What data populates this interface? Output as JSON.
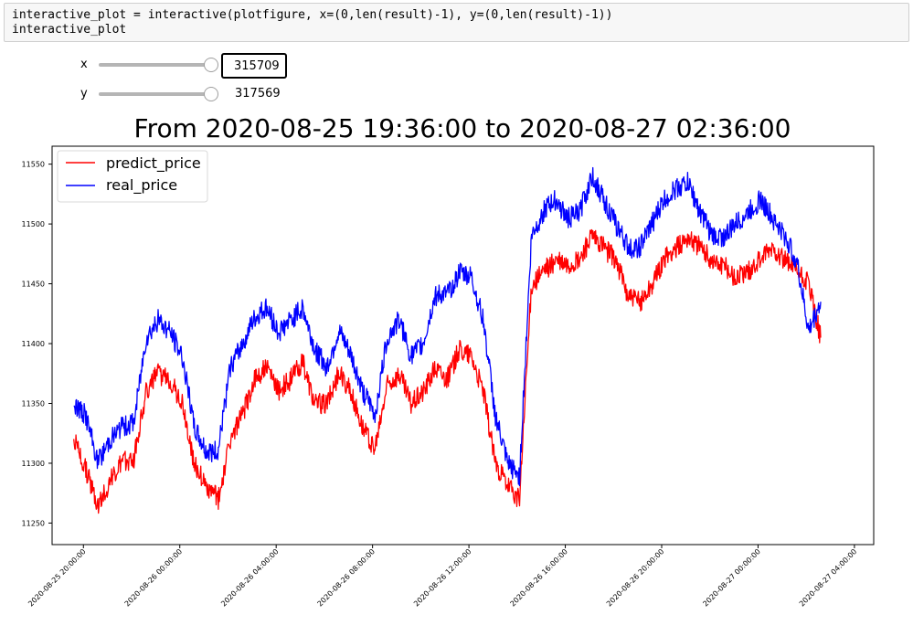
{
  "code_cell": {
    "line1": "interactive_plot = interactive(plotfigure, x=(0,len(result)-1), y=(0,len(result)-1))",
    "line2": "interactive_plot"
  },
  "widgets": {
    "x": {
      "label": "x",
      "value": "315709",
      "position_fraction": 1.0
    },
    "y": {
      "label": "y",
      "value": "317569",
      "position_fraction": 1.0
    }
  },
  "chart_data": {
    "type": "line",
    "title": "From 2020-08-25 19:36:00 to 2020-08-27 02:36:00",
    "xlabel": "",
    "ylabel": "",
    "x_range": [
      "2020-08-25 19:36:00",
      "2020-08-27 02:36:00"
    ],
    "ylim": [
      11232,
      11565
    ],
    "yticks": [
      11250,
      11300,
      11350,
      11400,
      11450,
      11500,
      11550
    ],
    "xticks": [
      "2020-08-25 20:00:00",
      "2020-08-26 00:00:00",
      "2020-08-26 04:00:00",
      "2020-08-26 08:00:00",
      "2020-08-26 12:00:00",
      "2020-08-26 16:00:00",
      "2020-08-26 20:00:00",
      "2020-08-27 00:00:00",
      "2020-08-27 04:00:00"
    ],
    "xtick_hours": [
      0.4,
      4.4,
      8.4,
      12.4,
      16.4,
      20.4,
      24.4,
      28.4,
      32.4
    ],
    "legend_position": "top-left",
    "grid": false,
    "series": [
      {
        "name": "predict_price",
        "color": "#ff0000",
        "hours": [
          0,
          0.5,
          1,
          1.5,
          2,
          2.5,
          3,
          3.5,
          4,
          4.5,
          5,
          5.5,
          6,
          6.5,
          7,
          7.5,
          8,
          8.5,
          9,
          9.5,
          10,
          10.5,
          11,
          11.5,
          12,
          12.5,
          13,
          13.5,
          14,
          14.5,
          15,
          15.5,
          16,
          16.5,
          17,
          17.5,
          18,
          18.5,
          19,
          19.5,
          20,
          20.5,
          21,
          21.5,
          22,
          22.5,
          23,
          23.5,
          24,
          24.5,
          25,
          25.5,
          26,
          26.5,
          27,
          27.5,
          28,
          28.5,
          29,
          29.5,
          30,
          30.5,
          31
        ],
        "values": [
          11320,
          11295,
          11265,
          11285,
          11300,
          11305,
          11360,
          11375,
          11370,
          11350,
          11300,
          11280,
          11270,
          11320,
          11340,
          11370,
          11380,
          11360,
          11370,
          11385,
          11350,
          11350,
          11375,
          11360,
          11330,
          11310,
          11365,
          11375,
          11350,
          11360,
          11380,
          11370,
          11395,
          11390,
          11360,
          11300,
          11280,
          11270,
          11450,
          11460,
          11470,
          11465,
          11470,
          11490,
          11480,
          11470,
          11440,
          11435,
          11450,
          11470,
          11480,
          11490,
          11480,
          11470,
          11465,
          11455,
          11460,
          11470,
          11480,
          11470,
          11460,
          11450,
          11405
        ]
      },
      {
        "name": "real_price",
        "color": "#0000ff",
        "hours": [
          0,
          0.5,
          1,
          1.5,
          2,
          2.5,
          3,
          3.5,
          4,
          4.5,
          5,
          5.5,
          6,
          6.5,
          7,
          7.5,
          8,
          8.5,
          9,
          9.5,
          10,
          10.5,
          11,
          11.5,
          12,
          12.5,
          13,
          13.5,
          14,
          14.5,
          15,
          15.5,
          16,
          16.5,
          17,
          17.5,
          18,
          18.5,
          19,
          19.5,
          20,
          20.5,
          21,
          21.5,
          22,
          22.5,
          23,
          23.5,
          24,
          24.5,
          25,
          25.5,
          26,
          26.5,
          27,
          27.5,
          28,
          28.5,
          29,
          29.5,
          30,
          30.5,
          31
        ],
        "values": [
          11350,
          11340,
          11300,
          11320,
          11330,
          11335,
          11405,
          11420,
          11410,
          11390,
          11330,
          11310,
          11310,
          11380,
          11400,
          11420,
          11430,
          11410,
          11420,
          11430,
          11395,
          11380,
          11410,
          11390,
          11360,
          11340,
          11405,
          11420,
          11390,
          11400,
          11440,
          11440,
          11460,
          11455,
          11420,
          11340,
          11300,
          11290,
          11490,
          11510,
          11520,
          11505,
          11510,
          11540,
          11520,
          11500,
          11480,
          11480,
          11500,
          11520,
          11530,
          11535,
          11510,
          11490,
          11490,
          11500,
          11510,
          11520,
          11505,
          11490,
          11470,
          11410,
          11435
        ]
      }
    ]
  }
}
